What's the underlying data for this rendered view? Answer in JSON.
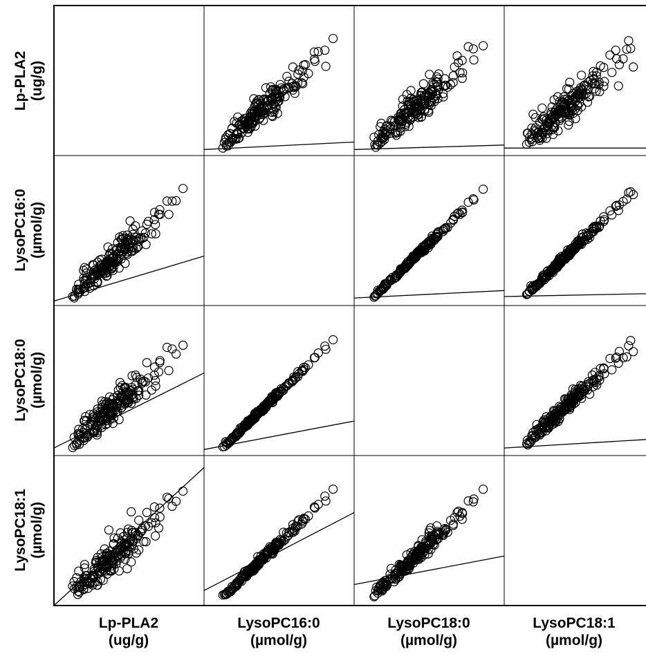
{
  "chart_data": {
    "type": "scatter",
    "layout": "scatterplot-matrix",
    "title": "",
    "variables": [
      {
        "name": "Lp-PLA2",
        "unit": "(ug/g)"
      },
      {
        "name": "LysoPC16:0",
        "unit": "(µmol/g)"
      },
      {
        "name": "LysoPC18:0",
        "unit": "(µmol/g)"
      },
      {
        "name": "LysoPC18:1",
        "unit": "(µmol/g)"
      }
    ],
    "variable_ranges": [
      [
        0.0,
        1.0
      ],
      [
        0.0,
        1.0
      ],
      [
        0.0,
        1.0
      ],
      [
        0.0,
        1.0
      ]
    ],
    "n_points_per_panel": 200,
    "correlation_strength": [
      [
        1.0,
        0.55,
        0.55,
        0.45
      ],
      [
        0.55,
        1.0,
        0.92,
        0.88
      ],
      [
        0.55,
        0.92,
        1.0,
        0.75
      ],
      [
        0.45,
        0.88,
        0.75,
        1.0
      ]
    ],
    "fit_lines": [
      {
        "row": 0,
        "col": 1,
        "y_at_xmin": 0.04,
        "y_at_xmax": 0.09
      },
      {
        "row": 0,
        "col": 2,
        "y_at_xmin": 0.04,
        "y_at_xmax": 0.07
      },
      {
        "row": 0,
        "col": 3,
        "y_at_xmin": 0.05,
        "y_at_xmax": 0.05
      },
      {
        "row": 1,
        "col": 0,
        "y_at_xmin": 0.03,
        "y_at_xmax": 0.33
      },
      {
        "row": 1,
        "col": 2,
        "y_at_xmin": 0.05,
        "y_at_xmax": 0.1
      },
      {
        "row": 1,
        "col": 3,
        "y_at_xmin": 0.06,
        "y_at_xmax": 0.08
      },
      {
        "row": 2,
        "col": 0,
        "y_at_xmin": 0.05,
        "y_at_xmax": 0.55
      },
      {
        "row": 2,
        "col": 1,
        "y_at_xmin": 0.04,
        "y_at_xmax": 0.23
      },
      {
        "row": 2,
        "col": 3,
        "y_at_xmin": 0.05,
        "y_at_xmax": 0.11
      },
      {
        "row": 3,
        "col": 0,
        "y_at_xmin": 0.0,
        "y_at_xmax": 0.92
      },
      {
        "row": 3,
        "col": 1,
        "y_at_xmin": 0.1,
        "y_at_xmax": 0.62
      },
      {
        "row": 3,
        "col": 2,
        "y_at_xmin": 0.14,
        "y_at_xmax": 0.33
      }
    ],
    "grid": false,
    "legend": "none"
  }
}
